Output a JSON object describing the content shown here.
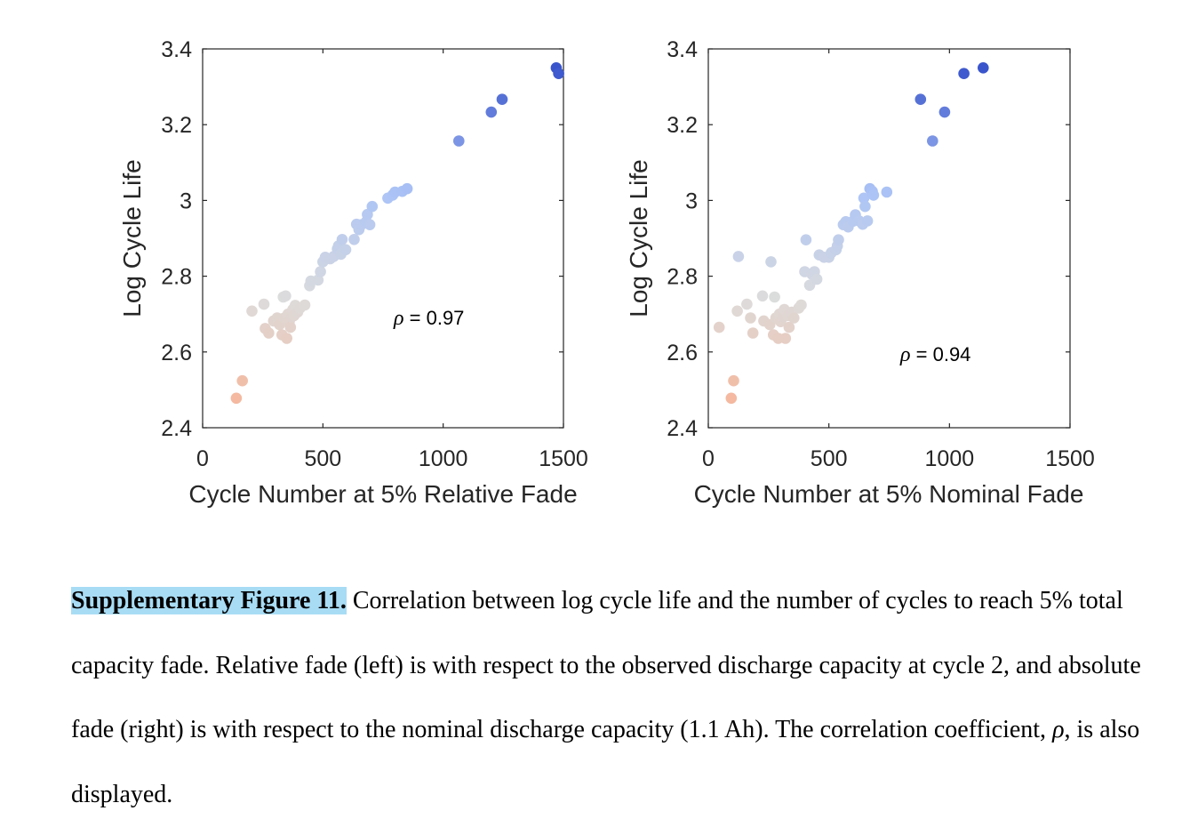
{
  "colors": {
    "low": "#f4b9a0",
    "mid": "#dcdcdc",
    "high": "#3a55cc"
  },
  "chart_data": [
    {
      "type": "scatter",
      "xlabel": "Cycle Number at 5% Relative Fade",
      "ylabel": "Log Cycle Life",
      "xlim": [
        0,
        1500
      ],
      "ylim": [
        2.4,
        3.4
      ],
      "xticks": [
        "0",
        "500",
        "1000",
        "1500"
      ],
      "yticks": [
        "2.4",
        "2.6",
        "2.8",
        "3",
        "3.2",
        "3.4"
      ],
      "annotation": {
        "symbol": "ρ",
        "text": " = 0.97"
      },
      "points": [
        [
          140,
          2.478
        ],
        [
          165,
          2.524
        ],
        [
          205,
          2.708
        ],
        [
          255,
          2.726
        ],
        [
          260,
          2.662
        ],
        [
          275,
          2.65
        ],
        [
          295,
          2.682
        ],
        [
          310,
          2.69
        ],
        [
          320,
          2.672
        ],
        [
          330,
          2.645
        ],
        [
          335,
          2.745
        ],
        [
          340,
          2.69
        ],
        [
          345,
          2.748
        ],
        [
          350,
          2.636
        ],
        [
          355,
          2.7
        ],
        [
          360,
          2.68
        ],
        [
          365,
          2.665
        ],
        [
          370,
          2.692
        ],
        [
          375,
          2.712
        ],
        [
          380,
          2.696
        ],
        [
          385,
          2.723
        ],
        [
          395,
          2.705
        ],
        [
          405,
          2.716
        ],
        [
          425,
          2.724
        ],
        [
          445,
          2.775
        ],
        [
          450,
          2.787
        ],
        [
          480,
          2.79
        ],
        [
          490,
          2.812
        ],
        [
          500,
          2.838
        ],
        [
          510,
          2.85
        ],
        [
          530,
          2.846
        ],
        [
          545,
          2.852
        ],
        [
          560,
          2.872
        ],
        [
          565,
          2.88
        ],
        [
          575,
          2.858
        ],
        [
          580,
          2.897
        ],
        [
          595,
          2.87
        ],
        [
          630,
          2.897
        ],
        [
          640,
          2.937
        ],
        [
          650,
          2.923
        ],
        [
          660,
          2.936
        ],
        [
          680,
          2.944
        ],
        [
          685,
          2.963
        ],
        [
          695,
          2.936
        ],
        [
          705,
          2.984
        ],
        [
          770,
          3.006
        ],
        [
          790,
          3.014
        ],
        [
          800,
          3.022
        ],
        [
          830,
          3.024
        ],
        [
          850,
          3.031
        ],
        [
          1065,
          3.157
        ],
        [
          1200,
          3.233
        ],
        [
          1245,
          3.267
        ],
        [
          1470,
          3.35
        ],
        [
          1480,
          3.335
        ]
      ]
    },
    {
      "type": "scatter",
      "xlabel": "Cycle Number at 5% Nominal Fade",
      "ylabel": "Log Cycle Life",
      "xlim": [
        0,
        1500
      ],
      "ylim": [
        2.4,
        3.4
      ],
      "xticks": [
        "0",
        "500",
        "1000",
        "1500"
      ],
      "yticks": [
        "2.4",
        "2.6",
        "2.8",
        "3",
        "3.2",
        "3.4"
      ],
      "annotation": {
        "symbol": "ρ",
        "text": " = 0.94"
      },
      "points": [
        [
          45,
          2.665
        ],
        [
          95,
          2.478
        ],
        [
          105,
          2.524
        ],
        [
          120,
          2.708
        ],
        [
          125,
          2.852
        ],
        [
          160,
          2.726
        ],
        [
          175,
          2.69
        ],
        [
          185,
          2.65
        ],
        [
          225,
          2.748
        ],
        [
          230,
          2.682
        ],
        [
          255,
          2.672
        ],
        [
          260,
          2.838
        ],
        [
          270,
          2.645
        ],
        [
          275,
          2.745
        ],
        [
          280,
          2.69
        ],
        [
          290,
          2.636
        ],
        [
          295,
          2.7
        ],
        [
          300,
          2.68
        ],
        [
          310,
          2.692
        ],
        [
          315,
          2.712
        ],
        [
          320,
          2.636
        ],
        [
          330,
          2.696
        ],
        [
          335,
          2.665
        ],
        [
          345,
          2.705
        ],
        [
          355,
          2.69
        ],
        [
          375,
          2.716
        ],
        [
          385,
          2.724
        ],
        [
          400,
          2.812
        ],
        [
          405,
          2.896
        ],
        [
          420,
          2.776
        ],
        [
          430,
          2.805
        ],
        [
          440,
          2.812
        ],
        [
          450,
          2.792
        ],
        [
          460,
          2.856
        ],
        [
          480,
          2.85
        ],
        [
          500,
          2.85
        ],
        [
          510,
          2.862
        ],
        [
          530,
          2.87
        ],
        [
          535,
          2.88
        ],
        [
          540,
          2.896
        ],
        [
          560,
          2.936
        ],
        [
          570,
          2.944
        ],
        [
          580,
          2.93
        ],
        [
          600,
          2.945
        ],
        [
          610,
          2.962
        ],
        [
          625,
          2.946
        ],
        [
          640,
          2.937
        ],
        [
          645,
          3.006
        ],
        [
          650,
          2.984
        ],
        [
          660,
          2.946
        ],
        [
          670,
          3.031
        ],
        [
          680,
          3.024
        ],
        [
          685,
          3.014
        ],
        [
          740,
          3.022
        ],
        [
          880,
          3.267
        ],
        [
          930,
          3.157
        ],
        [
          980,
          3.233
        ],
        [
          1060,
          3.335
        ],
        [
          1140,
          3.35
        ]
      ]
    }
  ],
  "caption": {
    "label": "Supplementary Figure 11.",
    "text": " Correlation between log cycle life and the number of cycles to reach 5% total capacity fade. Relative fade (left) is with respect to the observed discharge capacity at cycle 2, and absolute fade (right) is with respect to the nominal discharge capacity (1.1 Ah). The correlation coefficient, ",
    "symbol": "ρ",
    "text_end": ", is also displayed."
  }
}
